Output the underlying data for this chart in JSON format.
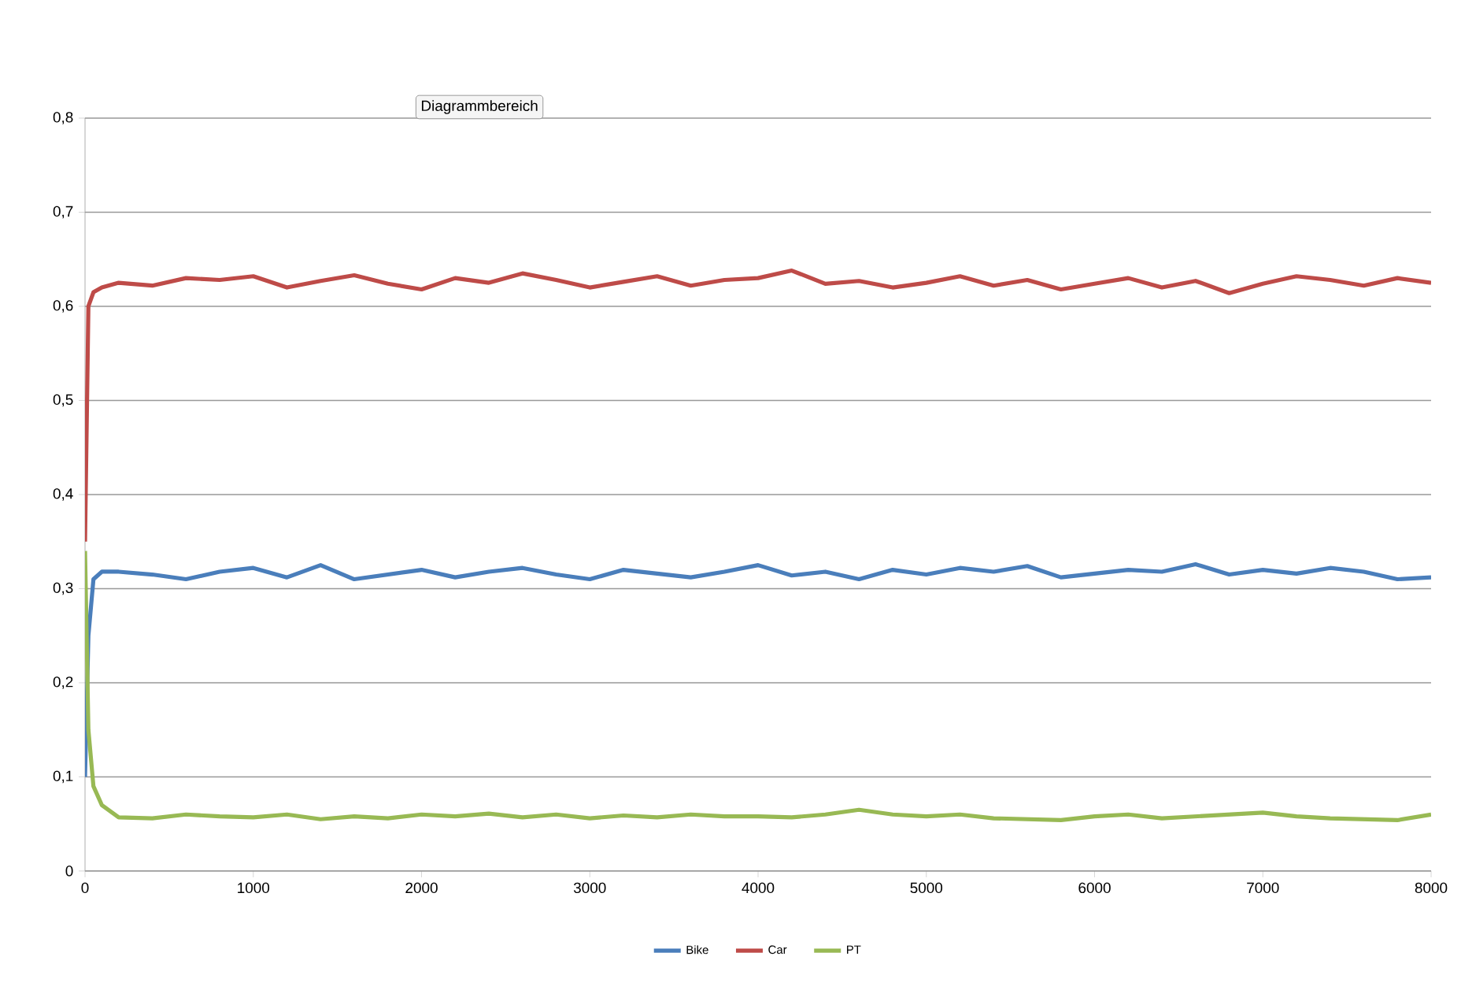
{
  "chart_data": {
    "type": "line",
    "x": [
      0,
      20,
      50,
      100,
      200,
      400,
      600,
      800,
      1000,
      1200,
      1400,
      1600,
      1800,
      2000,
      2200,
      2400,
      2600,
      2800,
      3000,
      3200,
      3400,
      3600,
      3800,
      4000,
      4200,
      4400,
      4600,
      4800,
      5000,
      5200,
      5400,
      5600,
      5800,
      6000,
      6200,
      6400,
      6600,
      6800,
      7000,
      7200,
      7400,
      7600,
      7800,
      8000
    ],
    "series": [
      {
        "name": "Bike",
        "color": "#4a7ebb",
        "values": [
          0.1,
          0.25,
          0.31,
          0.318,
          0.318,
          0.315,
          0.31,
          0.318,
          0.322,
          0.312,
          0.325,
          0.31,
          0.315,
          0.32,
          0.312,
          0.318,
          0.322,
          0.315,
          0.31,
          0.32,
          0.316,
          0.312,
          0.318,
          0.325,
          0.314,
          0.318,
          0.31,
          0.32,
          0.315,
          0.322,
          0.318,
          0.324,
          0.312,
          0.316,
          0.32,
          0.318,
          0.326,
          0.315,
          0.32,
          0.316,
          0.322,
          0.318,
          0.31,
          0.312
        ]
      },
      {
        "name": "Car",
        "color": "#be4b48",
        "values": [
          0.35,
          0.6,
          0.615,
          0.62,
          0.625,
          0.622,
          0.63,
          0.628,
          0.632,
          0.62,
          0.627,
          0.633,
          0.624,
          0.618,
          0.63,
          0.625,
          0.635,
          0.628,
          0.62,
          0.626,
          0.632,
          0.622,
          0.628,
          0.63,
          0.638,
          0.624,
          0.627,
          0.62,
          0.625,
          0.632,
          0.622,
          0.628,
          0.618,
          0.624,
          0.63,
          0.62,
          0.627,
          0.614,
          0.624,
          0.632,
          0.628,
          0.622,
          0.63,
          0.625
        ]
      },
      {
        "name": "PT",
        "color": "#98b954",
        "values": [
          0.34,
          0.15,
          0.09,
          0.07,
          0.057,
          0.056,
          0.06,
          0.058,
          0.057,
          0.06,
          0.055,
          0.058,
          0.056,
          0.06,
          0.058,
          0.061,
          0.057,
          0.06,
          0.056,
          0.059,
          0.057,
          0.06,
          0.058,
          0.058,
          0.057,
          0.06,
          0.065,
          0.06,
          0.058,
          0.06,
          0.056,
          0.055,
          0.054,
          0.058,
          0.06,
          0.056,
          0.058,
          0.06,
          0.062,
          0.058,
          0.056,
          0.055,
          0.054,
          0.06
        ]
      }
    ],
    "xlim": [
      0,
      8000
    ],
    "xticks": [
      0,
      1000,
      2000,
      3000,
      4000,
      5000,
      6000,
      7000,
      8000
    ],
    "ylim": [
      0,
      0.8
    ],
    "yticks": [
      0,
      {
        "value": 0.1,
        "label": "0,1"
      },
      {
        "value": 0.2,
        "label": "0,2"
      },
      {
        "value": 0.3,
        "label": "0,3"
      },
      {
        "value": 0.4,
        "label": "0,4"
      },
      {
        "value": 0.5,
        "label": "0,5"
      },
      {
        "value": 0.6,
        "label": "0,6"
      },
      {
        "value": 0.7,
        "label": "0,7"
      },
      {
        "value": 0.8,
        "label": "0,8"
      }
    ],
    "grid": "y",
    "legend": "bottom",
    "marker": "none",
    "line_style": "solid",
    "annotations": [
      "Diagrammbereich"
    ]
  }
}
